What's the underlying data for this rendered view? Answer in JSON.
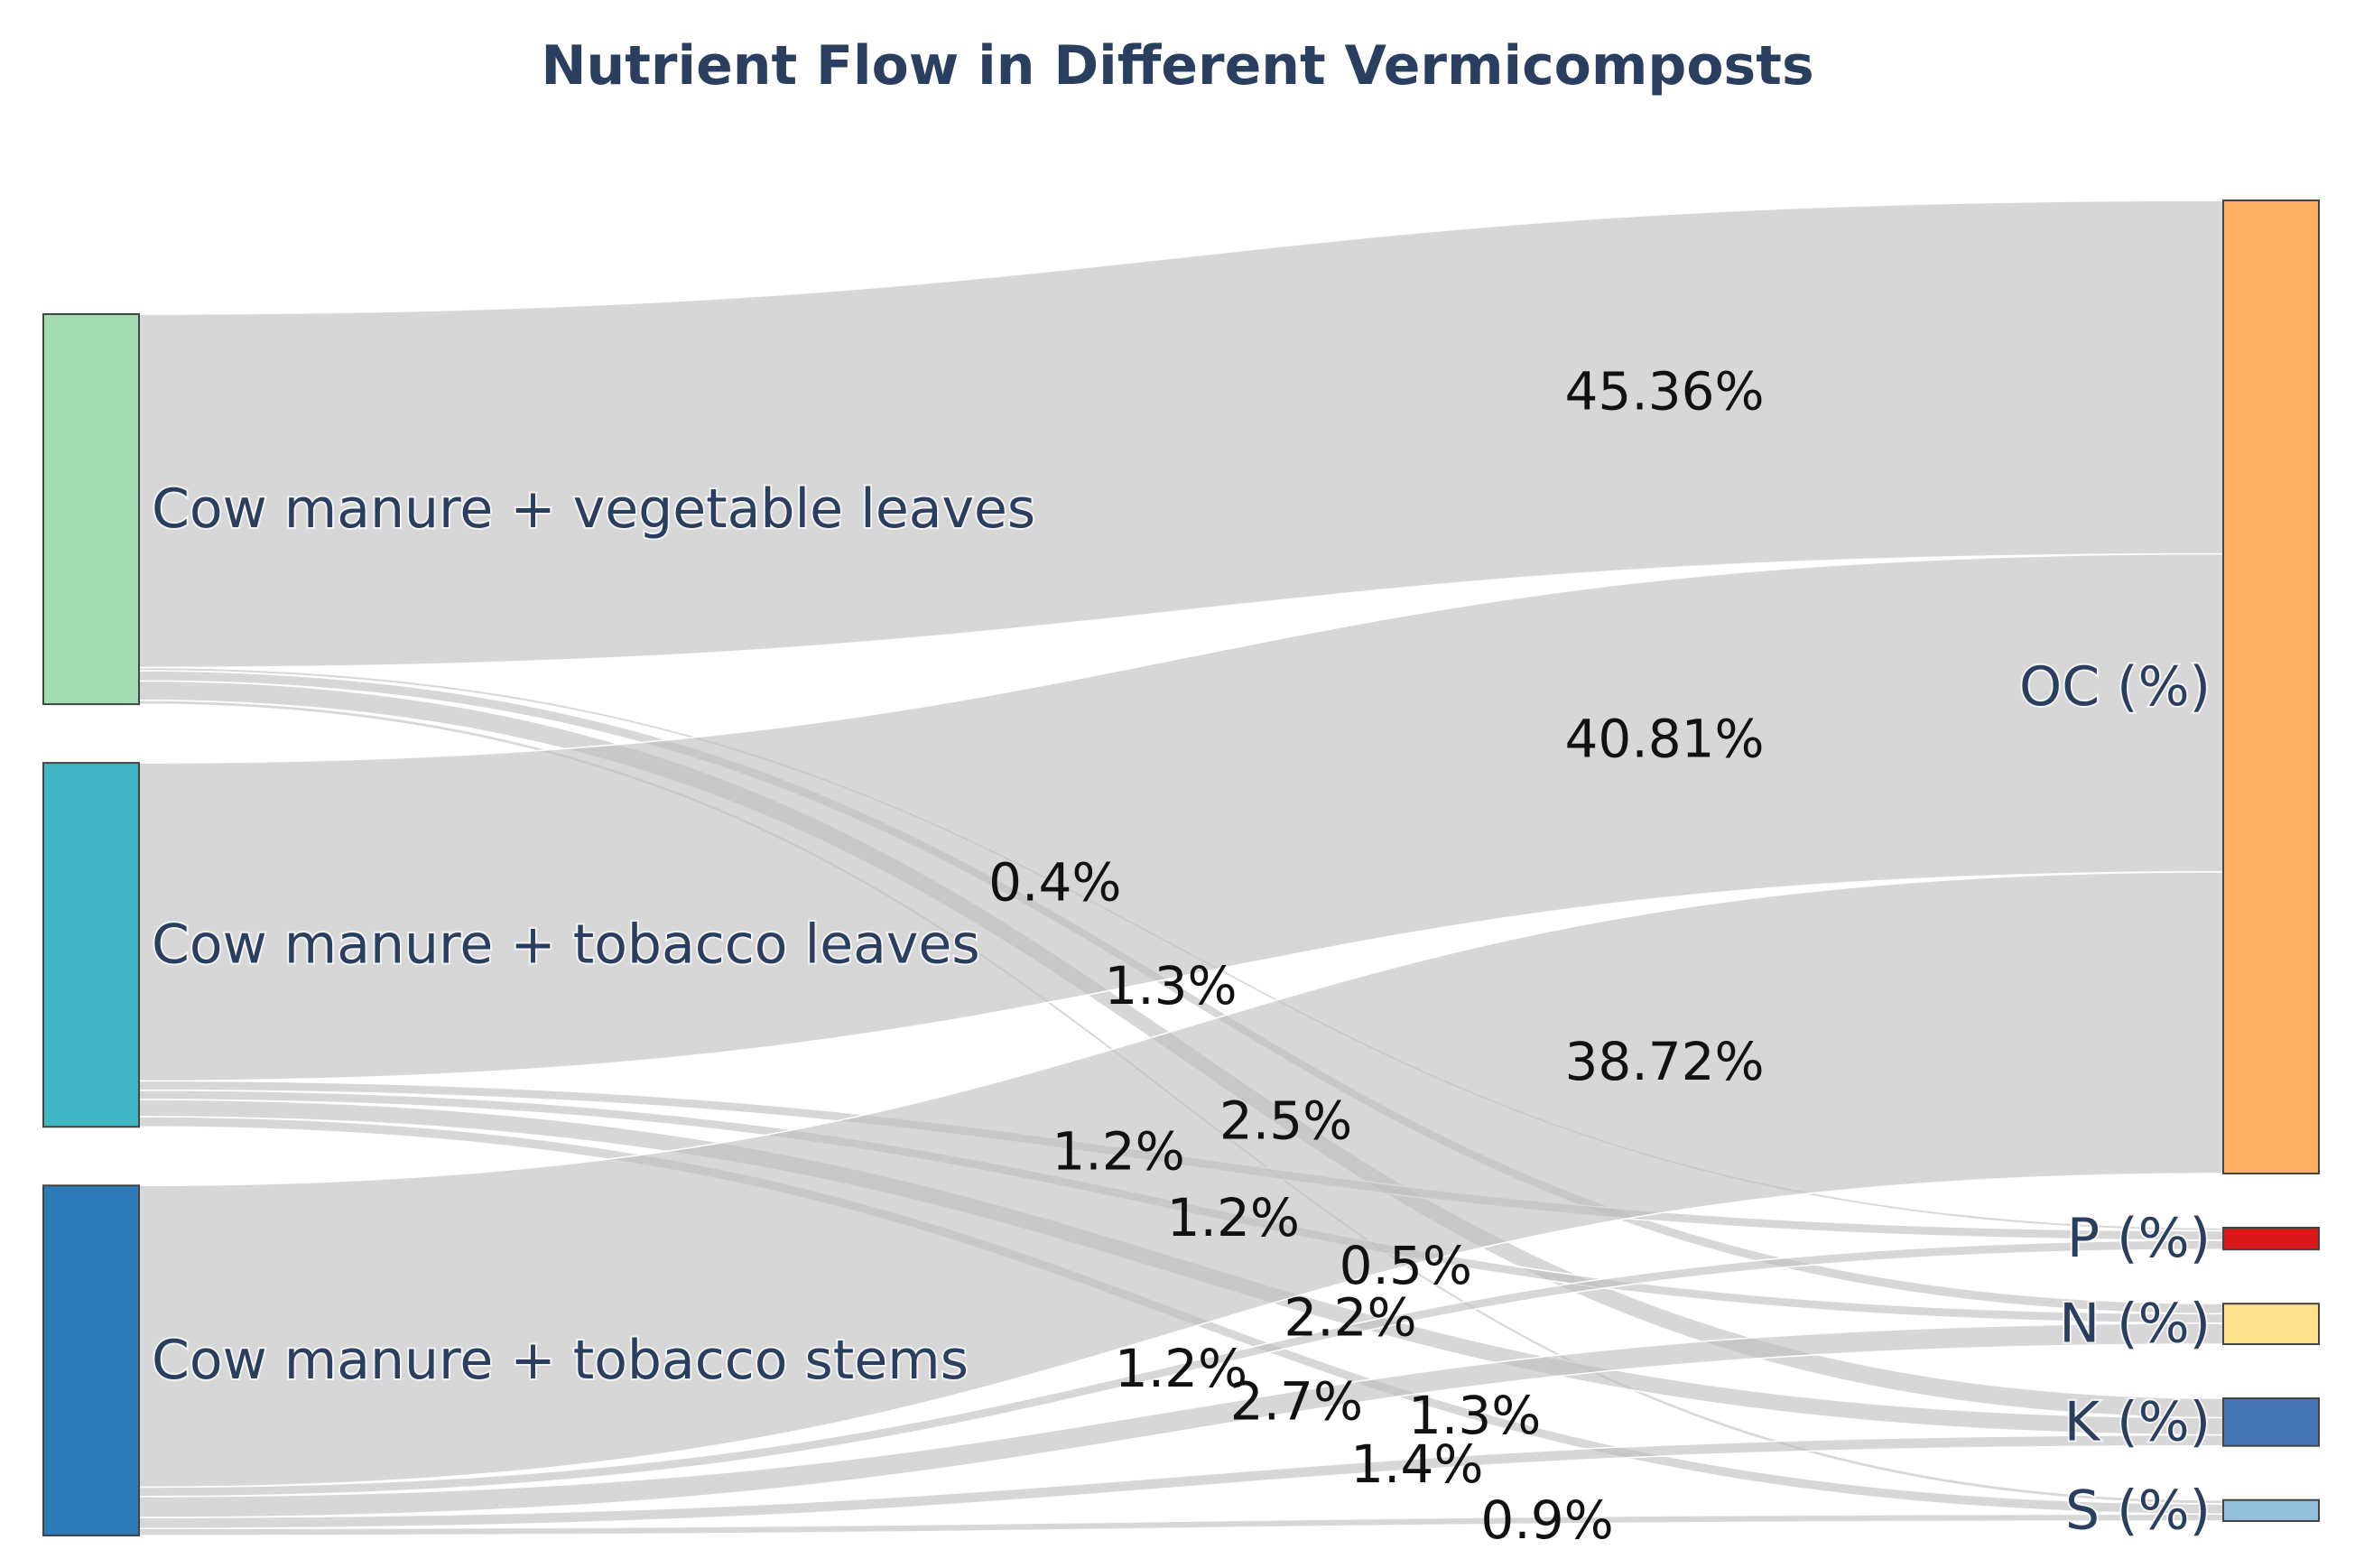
{
  "title": "Nutrient Flow in Different Vermicomposts",
  "chart_data": {
    "type": "sankey",
    "title": "Nutrient Flow in Different Vermicomposts",
    "sources": [
      {
        "name": "Cow manure + vegetable leaves",
        "color": "#a3dcb1"
      },
      {
        "name": "Cow manure + tobacco leaves",
        "color": "#41b6c4"
      },
      {
        "name": "Cow manure + tobacco stems",
        "color": "#2c7bb6"
      }
    ],
    "targets": [
      {
        "name": "OC (%)",
        "color": "#fdae61"
      },
      {
        "name": "P (%)",
        "color": "#d7191c"
      },
      {
        "name": "N (%)",
        "color": "#fee08b"
      },
      {
        "name": "K (%)",
        "color": "#4575b4"
      },
      {
        "name": "S (%)",
        "color": "#91bfdb"
      }
    ],
    "links": [
      {
        "source": "Cow manure + vegetable leaves",
        "target": "OC (%)",
        "value": 45.36,
        "label": "45.36%"
      },
      {
        "source": "Cow manure + vegetable leaves",
        "target": "P (%)",
        "value": 0.4,
        "label": "0.4%"
      },
      {
        "source": "Cow manure + vegetable leaves",
        "target": "N (%)",
        "value": 1.3,
        "label": "1.3%"
      },
      {
        "source": "Cow manure + vegetable leaves",
        "target": "K (%)",
        "value": 2.5,
        "label": "2.5%"
      },
      {
        "source": "Cow manure + vegetable leaves",
        "target": "S (%)",
        "value": 0.5,
        "label": "0.5%"
      },
      {
        "source": "Cow manure + tobacco leaves",
        "target": "OC (%)",
        "value": 40.81,
        "label": "40.81%"
      },
      {
        "source": "Cow manure + tobacco leaves",
        "target": "P (%)",
        "value": 1.2,
        "label": "1.2%"
      },
      {
        "source": "Cow manure + tobacco leaves",
        "target": "N (%)",
        "value": 1.2,
        "label": "1.2%"
      },
      {
        "source": "Cow manure + tobacco leaves",
        "target": "K (%)",
        "value": 2.2,
        "label": "2.2%"
      },
      {
        "source": "Cow manure + tobacco leaves",
        "target": "S (%)",
        "value": 1.3,
        "label": "1.3%"
      },
      {
        "source": "Cow manure + tobacco stems",
        "target": "OC (%)",
        "value": 38.72,
        "label": "38.72%"
      },
      {
        "source": "Cow manure + tobacco stems",
        "target": "P (%)",
        "value": 1.2,
        "label": "1.2%"
      },
      {
        "source": "Cow manure + tobacco stems",
        "target": "N (%)",
        "value": 2.7,
        "label": "2.7%"
      },
      {
        "source": "Cow manure + tobacco stems",
        "target": "K (%)",
        "value": 1.4,
        "label": "1.4%"
      },
      {
        "source": "Cow manure + tobacco stems",
        "target": "S (%)",
        "value": 0.9,
        "label": "0.9%"
      }
    ]
  }
}
